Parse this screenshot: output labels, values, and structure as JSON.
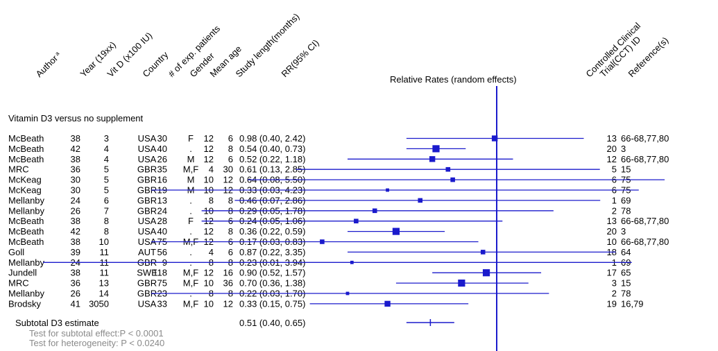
{
  "chart_data": {
    "type": "forest",
    "title": "Relative Rates (random effects)",
    "section_label": "Vitamin D3 versus no supplement",
    "columns": {
      "author": "Author",
      "author_sup": "a",
      "year": "Year (19xx)",
      "vitd": "Vit D (x100 IU)",
      "country": "Country",
      "patients": "# of exp. patients",
      "gender": "Gender",
      "mean_age": "Mean age",
      "study_length": "Study length(months)",
      "rr": "RR(95% CI)",
      "cct_line1": "Controlled Clinical",
      "cct_line2": "Trial(CCT) ID",
      "reference": "Reference(s)"
    },
    "x_scale": {
      "min": 0.01,
      "max": 6.0,
      "scale": "log",
      "reference_line": 1.0
    },
    "studies": [
      {
        "author": "McBeath",
        "year": "38",
        "vitd": "3",
        "country": "USA",
        "patients": "30",
        "gender": "F",
        "age": "12",
        "length": "6",
        "rr_text": "0.98 (0.40, 2.42)",
        "rr": 0.98,
        "lo": 0.4,
        "hi": 2.42,
        "cct": "13",
        "ref": "66-68,77,80",
        "weight": 3
      },
      {
        "author": "McBeath",
        "year": "42",
        "vitd": "4",
        "country": "USA",
        "patients": "40",
        "gender": ".",
        "age": "12",
        "length": "8",
        "rr_text": "0.54 (0.40, 0.73)",
        "rr": 0.54,
        "lo": 0.4,
        "hi": 0.73,
        "cct": "20",
        "ref": "3",
        "weight": 4
      },
      {
        "author": "McBeath",
        "year": "38",
        "vitd": "4",
        "country": "USA",
        "patients": "26",
        "gender": "M",
        "age": "12",
        "length": "6",
        "rr_text": "0.52 (0.22, 1.18)",
        "rr": 0.52,
        "lo": 0.22,
        "hi": 1.18,
        "cct": "12",
        "ref": "66-68,77,80",
        "weight": 3
      },
      {
        "author": "MRC",
        "year": "36",
        "vitd": "5",
        "country": "GBR",
        "patients": "35",
        "gender": "M,F",
        "age": "4",
        "length": "30",
        "rr_text": "0.61 (0.13, 2.85)",
        "rr": 0.61,
        "lo": 0.13,
        "hi": 2.85,
        "cct": "5",
        "ref": "15",
        "weight": 2
      },
      {
        "author": "McKeag",
        "year": "30",
        "vitd": "5",
        "country": "GBR",
        "patients": "16",
        "gender": "M",
        "age": "10",
        "length": "12",
        "rr_text": "0.64 (0.08, 5.50)",
        "rr": 0.64,
        "lo": 0.08,
        "hi": 5.5,
        "cct": "6",
        "ref": "75",
        "weight": 2
      },
      {
        "author": "McKeag",
        "year": "30",
        "vitd": "5",
        "country": "GBR",
        "patients": "19",
        "gender": "M",
        "age": "10",
        "length": "12",
        "rr_text": "0.33 (0.03, 4.23)",
        "rr": 0.33,
        "lo": 0.03,
        "hi": 4.23,
        "cct": "6",
        "ref": "75",
        "weight": 1
      },
      {
        "author": "Mellanby",
        "year": "24",
        "vitd": "6",
        "country": "GBR",
        "patients": "13",
        "gender": ".",
        "age": "8",
        "length": "8",
        "rr_text": "0.46 (0.07, 2.86)",
        "rr": 0.46,
        "lo": 0.07,
        "hi": 2.86,
        "cct": "1",
        "ref": "69",
        "weight": 2
      },
      {
        "author": "Mellanby",
        "year": "26",
        "vitd": "7",
        "country": "GBR",
        "patients": "24",
        "gender": ".",
        "age": "10",
        "length": "8",
        "rr_text": "0.29 (0.05, 1.78)",
        "rr": 0.29,
        "lo": 0.05,
        "hi": 1.78,
        "cct": "2",
        "ref": "78",
        "weight": 2
      },
      {
        "author": "McBeath",
        "year": "38",
        "vitd": "8",
        "country": "USA",
        "patients": "28",
        "gender": "F",
        "age": "12",
        "length": "6",
        "rr_text": "0.24 (0.05, 1.06)",
        "rr": 0.24,
        "lo": 0.05,
        "hi": 1.06,
        "cct": "13",
        "ref": "66-68,77,80",
        "weight": 2
      },
      {
        "author": "McBeath",
        "year": "42",
        "vitd": "8",
        "country": "USA",
        "patients": "40",
        "gender": ".",
        "age": "12",
        "length": "8",
        "rr_text": "0.36 (0.22, 0.59)",
        "rr": 0.36,
        "lo": 0.22,
        "hi": 0.59,
        "cct": "20",
        "ref": "3",
        "weight": 4
      },
      {
        "author": "McBeath",
        "year": "38",
        "vitd": "10",
        "country": "USA",
        "patients": "75",
        "gender": "M,F",
        "age": "12",
        "length": "6",
        "rr_text": "0.17 (0.03, 0.83)",
        "rr": 0.17,
        "lo": 0.03,
        "hi": 0.83,
        "cct": "10",
        "ref": "66-68,77,80",
        "weight": 2
      },
      {
        "author": "Goll",
        "year": "39",
        "vitd": "11",
        "country": "AUT",
        "patients": "56",
        "gender": ".",
        "age": "4",
        "length": "6",
        "rr_text": "0.87 (0.22, 3.35)",
        "rr": 0.87,
        "lo": 0.22,
        "hi": 3.35,
        "cct": "18",
        "ref": "64",
        "weight": 2
      },
      {
        "author": "Mellanby",
        "year": "24",
        "vitd": "11",
        "country": "GBR",
        "patients": "9",
        "gender": ".",
        "age": "8",
        "length": "8",
        "rr_text": "0.23 (0.01, 3.94)",
        "rr": 0.23,
        "lo": 0.01,
        "hi": 3.94,
        "cct": "1",
        "ref": "69",
        "weight": 1
      },
      {
        "author": "Jundell",
        "year": "38",
        "vitd": "11",
        "country": "SWE",
        "patients": "118",
        "gender": "M,F",
        "age": "12",
        "length": "16",
        "rr_text": "0.90 (0.52, 1.57)",
        "rr": 0.9,
        "lo": 0.52,
        "hi": 1.57,
        "cct": "17",
        "ref": "65",
        "weight": 4
      },
      {
        "author": "MRC",
        "year": "36",
        "vitd": "13",
        "country": "GBR",
        "patients": "75",
        "gender": "M,F",
        "age": "10",
        "length": "36",
        "rr_text": "0.70 (0.36, 1.38)",
        "rr": 0.7,
        "lo": 0.36,
        "hi": 1.38,
        "cct": "3",
        "ref": "15",
        "weight": 4
      },
      {
        "author": "Mellanby",
        "year": "26",
        "vitd": "14",
        "country": "GBR",
        "patients": "23",
        "gender": ".",
        "age": "8",
        "length": "8",
        "rr_text": "0.22 (0.03, 1.70)",
        "rr": 0.22,
        "lo": 0.03,
        "hi": 1.7,
        "cct": "2",
        "ref": "78",
        "weight": 1
      },
      {
        "author": "Brodsky",
        "year": "41",
        "vitd": "3050",
        "country": "USA",
        "patients": "33",
        "gender": "M,F",
        "age": "10",
        "length": "12",
        "rr_text": "0.33 (0.15, 0.75)",
        "rr": 0.33,
        "lo": 0.15,
        "hi": 0.75,
        "cct": "19",
        "ref": "16,79",
        "weight": 3
      }
    ],
    "subtotal": {
      "label": "Subtotal D3 estimate",
      "rr_text": "0.51 (0.40, 0.65)",
      "rr": 0.51,
      "lo": 0.4,
      "hi": 0.65,
      "test_effect": "Test for subtotal effect:P < 0.0001",
      "test_heterogeneity": "Test for heterogeneity: P < 0.0240"
    },
    "colors": {
      "plot": "#1a1acc",
      "text": "#000000",
      "muted": "#8a8a8a"
    }
  }
}
